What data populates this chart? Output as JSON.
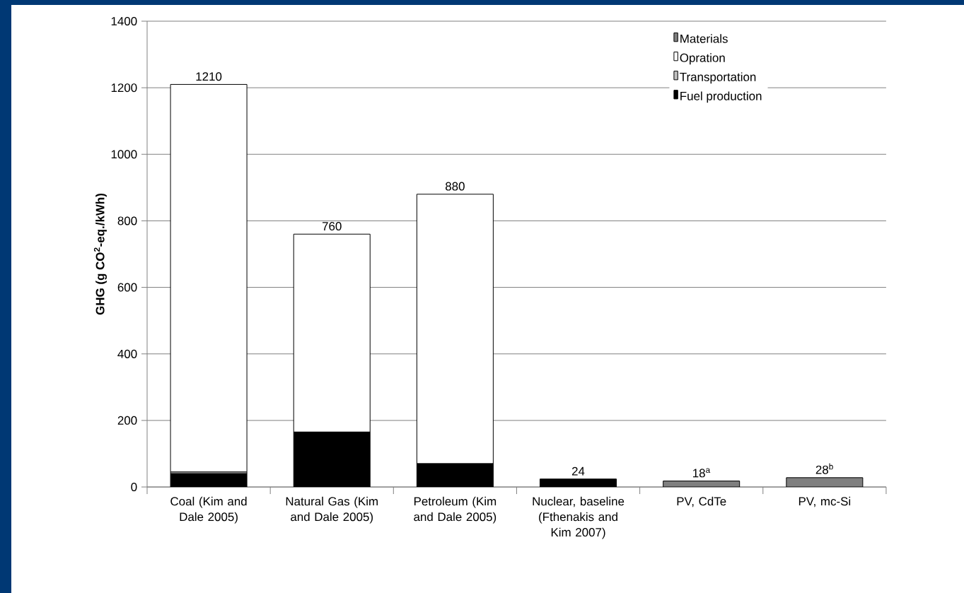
{
  "chart_data": {
    "type": "bar",
    "stacked": true,
    "ylabel": "GHG (g CO$^{2}$-eq./kWh)",
    "categories": [
      "Coal (Kim and Dale 2005)",
      "Natural Gas (Kim and Dale 2005)",
      "Petroleum (Kim and Dale 2005)",
      "Nuclear, baseline (Fthenakis and Kim 2007)",
      "PV, CdTe",
      "PV, mc-Si"
    ],
    "series": [
      {
        "name": "Fuel production",
        "color": "#000000",
        "values": [
          40,
          165,
          70,
          24,
          null,
          null
        ]
      },
      {
        "name": "Transportation",
        "color": "#c0c0c0",
        "values": [
          5,
          null,
          null,
          null,
          null,
          null
        ]
      },
      {
        "name": "Opration",
        "color": "#ffffff",
        "values": [
          1165,
          595,
          810,
          null,
          null,
          null
        ]
      },
      {
        "name": "Materials",
        "color": "#7f7f7f",
        "values": [
          null,
          null,
          null,
          null,
          18,
          28
        ]
      }
    ],
    "totals": [
      "1210",
      "760",
      "880",
      "24",
      "18$^{a}$",
      "28$^{b}$"
    ],
    "ylim": [
      0,
      1400
    ],
    "yticks": [
      0,
      200,
      400,
      600,
      800,
      1000,
      1200,
      1400
    ],
    "grid": "y",
    "legend": "top right"
  }
}
